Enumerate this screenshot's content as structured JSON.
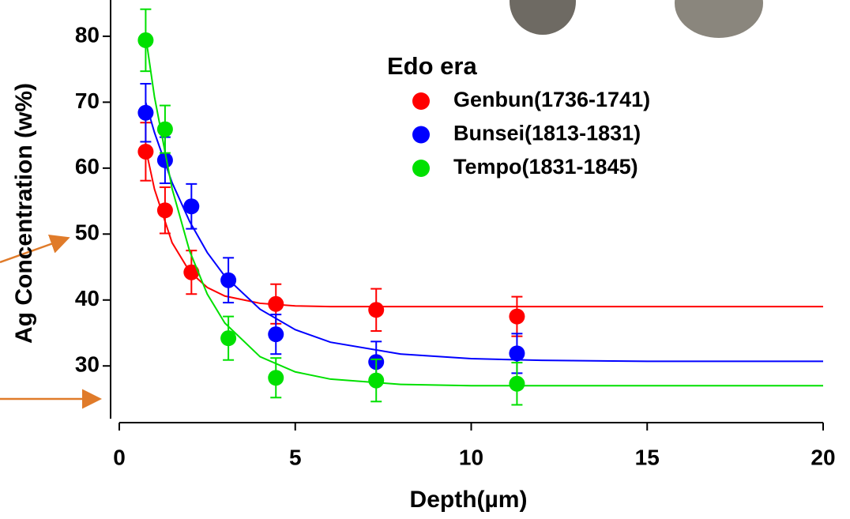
{
  "chart_data": {
    "type": "scatter",
    "xlabel": "Depth(µm)",
    "ylabel": "Ag Concentration (w%)",
    "legend_title": "Edo era",
    "xlim": [
      0,
      20
    ],
    "xticks": [
      0,
      5,
      10,
      15,
      20
    ],
    "ylim": [
      22,
      85.5
    ],
    "yticks": [
      30,
      40,
      50,
      60,
      70,
      80
    ],
    "series": [
      {
        "name": "Genbun(1736-1741)",
        "color": "#ff0000",
        "x": [
          0.75,
          1.3,
          2.05,
          4.45,
          7.3,
          11.3
        ],
        "values": [
          62.5,
          53.6,
          44.2,
          39.4,
          38.5,
          37.5
        ],
        "errors": [
          4.4,
          3.5,
          3.3,
          3,
          3.2,
          3
        ],
        "fit_x": [
          0.75,
          1,
          1.5,
          2,
          2.5,
          3,
          4,
          5,
          6,
          8,
          10,
          12,
          15,
          20
        ],
        "fit_values": [
          63,
          56.8,
          48.7,
          44.3,
          41.9,
          40.6,
          39.5,
          39.1,
          39,
          39,
          39,
          39,
          39,
          39
        ]
      },
      {
        "name": "Bunsei(1813-1831)",
        "color": "#0000ff",
        "x": [
          0.75,
          1.3,
          2.05,
          3.1,
          4.45,
          7.3,
          11.3
        ],
        "values": [
          68.4,
          61.2,
          54.2,
          43,
          34.8,
          30.6,
          31.9
        ],
        "errors": [
          4.4,
          3.5,
          3.4,
          3.4,
          3,
          3.1,
          3
        ],
        "fit_x": [
          0.75,
          1,
          1.5,
          2,
          2.5,
          3,
          4,
          5,
          6,
          8,
          10,
          12,
          15,
          20
        ],
        "fit_values": [
          70,
          65.4,
          57.8,
          51.9,
          47.2,
          43.6,
          38.6,
          35.5,
          33.6,
          31.8,
          31.1,
          30.85,
          30.7,
          30.7
        ]
      },
      {
        "name": "Tempo(1831-1845)",
        "color": "#00e000",
        "x": [
          0.75,
          1.3,
          3.1,
          4.45,
          7.3,
          11.3
        ],
        "values": [
          79.4,
          65.9,
          34.2,
          28.2,
          27.8,
          27.3
        ],
        "errors": [
          4.7,
          3.6,
          3.3,
          3,
          3.2,
          3.2
        ],
        "fit_x": [
          0.75,
          1,
          1.5,
          2,
          2.5,
          3,
          4,
          5,
          6,
          8,
          10,
          12,
          15,
          20
        ],
        "fit_values": [
          80,
          70.8,
          56.9,
          47.4,
          40.9,
          36.5,
          31.4,
          29.1,
          28,
          27.2,
          27,
          27,
          27,
          27
        ]
      }
    ]
  }
}
